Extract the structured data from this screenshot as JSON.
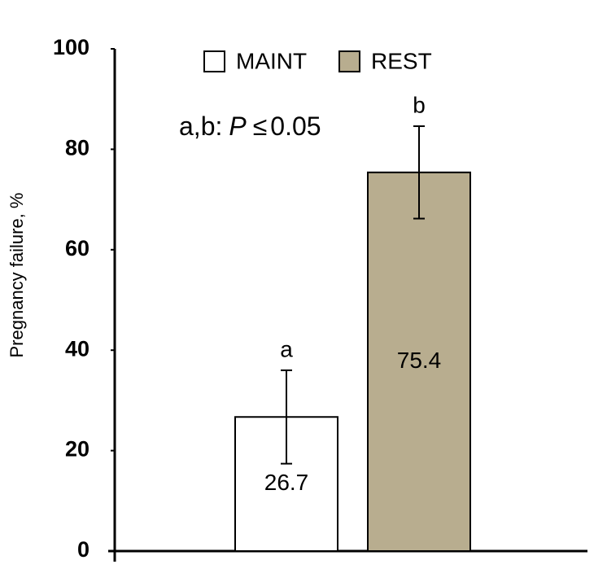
{
  "chart_data": {
    "type": "bar",
    "categories": [
      null
    ],
    "series": [
      {
        "name": "MAINT",
        "color": "#ffffff",
        "values": [
          26.7
        ],
        "errors": [
          9.3
        ],
        "annotations": [
          "a"
        ]
      },
      {
        "name": "REST",
        "color": "#b8ad8f",
        "values": [
          75.4
        ],
        "errors": [
          9.2
        ],
        "annotations": [
          "b"
        ]
      }
    ],
    "note": [
      "a,b:",
      "P",
      "≤",
      "0.05"
    ],
    "y_label": "Pregnancy failure, %",
    "ylim": [
      0,
      100
    ],
    "yticks": [
      0,
      20,
      40,
      60,
      80,
      100
    ],
    "legend": "top"
  }
}
